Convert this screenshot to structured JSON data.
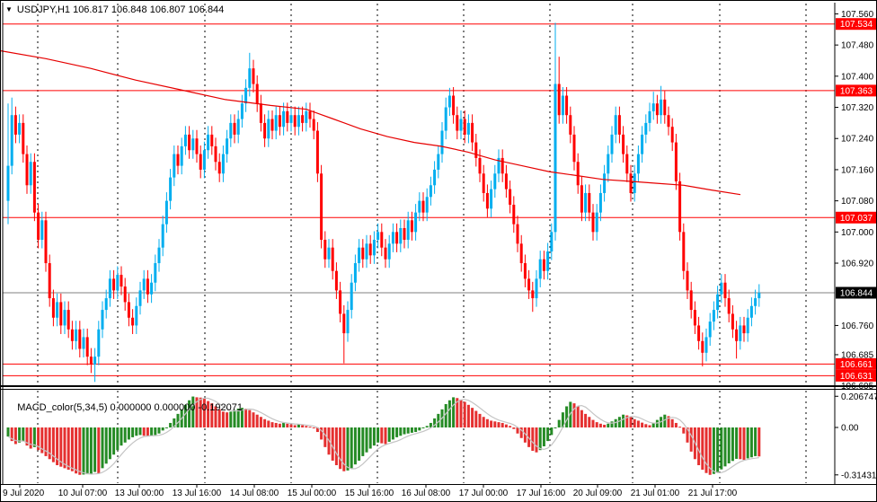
{
  "header": {
    "title": "USDJPY,H1 106.817 106.848 106.807 106.844",
    "symbol": "USDJPY",
    "timeframe": "H1"
  },
  "indicator": {
    "label": "MACD_color(5,34,5) 0.000000 0.000000 -0.192071",
    "name": "MACD_color",
    "params": "5,34,5",
    "current_values": [
      "0.000000",
      "0.000000",
      "-0.192071"
    ]
  },
  "colors": {
    "bull_candle": "#00aeef",
    "bear_candle": "#ff0000",
    "ma_line": "#e60000",
    "level_line": "#ff0000",
    "current_price_line": "#808080",
    "macd_up": "#258b25",
    "macd_down": "#e53030",
    "macd_signal": "#c4c4c4",
    "badge_red": "#ff0000",
    "badge_black": "#000000",
    "badge_text": "#ffffff",
    "grid": "#000000",
    "axis_text": "#000000"
  },
  "chart_data": {
    "type": "candlestick",
    "title": "USDJPY,H1",
    "ohlc_display": {
      "open": "106.817",
      "high": "106.848",
      "low": "106.807",
      "close": "106.844"
    },
    "ylim": [
      106.605,
      107.56
    ],
    "grid": "vertical-dashed",
    "price_axis_ticks": [
      107.56,
      107.48,
      107.4,
      107.32,
      107.24,
      107.16,
      107.08,
      107.0,
      106.92,
      106.76,
      106.685,
      106.605
    ],
    "current_price": 106.844,
    "horizontal_levels": [
      107.534,
      107.363,
      107.037,
      106.661,
      106.631
    ],
    "x_axis_labels": [
      "9 Jul 2020",
      "10 Jul 07:00",
      "13 Jul 00:00",
      "13 Jul 16:00",
      "14 Jul 08:00",
      "15 Jul 00:00",
      "15 Jul 16:00",
      "16 Jul 08:00",
      "17 Jul 00:00",
      "17 Jul 16:00",
      "20 Jul 09:00",
      "21 Jul 01:00",
      "21 Jul 17:00"
    ],
    "candles": {
      "first_open": 107.08,
      "default_wick": 0.022,
      "closes": [
        107.17,
        107.3,
        107.25,
        107.28,
        107.2,
        107.12,
        107.18,
        107.05,
        106.98,
        107.03,
        106.92,
        106.83,
        106.78,
        106.82,
        106.76,
        106.8,
        106.75,
        106.72,
        106.75,
        106.7,
        106.73,
        106.68,
        106.66,
        106.68,
        106.75,
        106.8,
        106.83,
        106.88,
        106.85,
        106.89,
        106.86,
        106.82,
        106.78,
        106.76,
        106.81,
        106.85,
        106.88,
        106.84,
        106.87,
        106.92,
        106.96,
        107.02,
        107.08,
        107.14,
        107.2,
        107.17,
        107.22,
        107.25,
        107.21,
        107.24,
        107.2,
        107.16,
        107.21,
        107.25,
        107.22,
        107.18,
        107.15,
        107.2,
        107.24,
        107.28,
        107.25,
        107.29,
        107.33,
        107.37,
        107.42,
        107.38,
        107.33,
        107.28,
        107.24,
        107.29,
        107.26,
        107.3,
        107.27,
        107.31,
        107.28,
        107.3,
        107.27,
        107.3,
        107.28,
        107.31,
        107.29,
        107.26,
        107.15,
        106.98,
        106.93,
        106.96,
        106.9,
        106.85,
        106.79,
        106.74,
        106.8,
        106.87,
        106.92,
        106.96,
        106.93,
        106.97,
        106.94,
        106.98,
        107.0,
        106.96,
        106.93,
        106.97,
        107.0,
        106.97,
        107.01,
        106.98,
        107.03,
        107.0,
        107.05,
        107.08,
        107.05,
        107.09,
        107.12,
        107.16,
        107.2,
        107.26,
        107.32,
        107.35,
        107.3,
        107.26,
        107.29,
        107.25,
        107.28,
        107.23,
        107.19,
        107.15,
        107.1,
        107.06,
        107.11,
        107.15,
        107.19,
        107.15,
        107.11,
        107.07,
        107.02,
        106.97,
        106.92,
        106.88,
        106.85,
        106.83,
        106.88,
        106.93,
        106.9,
        106.95,
        107.0,
        107.38,
        107.3,
        107.35,
        107.3,
        107.25,
        107.18,
        107.12,
        107.05,
        107.1,
        107.05,
        107.0,
        107.05,
        107.1,
        107.15,
        107.2,
        107.25,
        107.3,
        107.25,
        107.2,
        107.15,
        107.1,
        107.15,
        107.2,
        107.25,
        107.28,
        107.31,
        107.33,
        107.3,
        107.34,
        107.3,
        107.27,
        107.23,
        107.13,
        107.0,
        106.9,
        106.85,
        106.8,
        106.76,
        106.72,
        106.69,
        106.73,
        106.77,
        106.8,
        106.84,
        106.87,
        106.83,
        106.79,
        106.75,
        106.72,
        106.76,
        106.74,
        106.78,
        106.81,
        106.83,
        106.844
      ],
      "wick_overrides": {
        "0": {
          "h": 107.33,
          "l": 107.02
        },
        "1": {
          "h": 107.345
        },
        "23": {
          "l": 106.615
        },
        "64": {
          "h": 107.46
        },
        "89": {
          "l": 106.663
        },
        "116": {
          "h": 107.345
        },
        "117": {
          "h": 107.37
        },
        "139": {
          "l": 106.795
        },
        "145": {
          "h": 107.537
        },
        "146": {
          "h": 107.45
        },
        "171": {
          "h": 107.36
        },
        "173": {
          "h": 107.375
        },
        "184": {
          "l": 106.655
        },
        "193": {
          "l": 106.675
        }
      }
    },
    "ma_line_points": [
      [
        0,
        107.465
      ],
      [
        50,
        107.445
      ],
      [
        100,
        107.42
      ],
      [
        150,
        107.39
      ],
      [
        200,
        107.365
      ],
      [
        250,
        107.34
      ],
      [
        300,
        107.325
      ],
      [
        340,
        107.315
      ],
      [
        370,
        107.29
      ],
      [
        400,
        107.265
      ],
      [
        430,
        107.245
      ],
      [
        460,
        107.23
      ],
      [
        490,
        107.22
      ],
      [
        520,
        107.205
      ],
      [
        550,
        107.185
      ],
      [
        580,
        107.17
      ],
      [
        610,
        107.155
      ],
      [
        640,
        107.145
      ],
      [
        670,
        107.135
      ],
      [
        700,
        107.13
      ],
      [
        730,
        107.125
      ],
      [
        760,
        107.12
      ],
      [
        790,
        107.108
      ],
      [
        823,
        107.096
      ]
    ],
    "macd": {
      "ylim": [
        -0.314311,
        0.206747
      ],
      "axis_ticks": [
        {
          "value": 0.206747,
          "label": "0.206747"
        },
        {
          "value": 0,
          "label": "0.00"
        },
        {
          "value": -0.314311,
          "label": "-0.314311"
        }
      ],
      "signal_period": 5,
      "values": [
        -0.06,
        -0.09,
        -0.11,
        -0.1,
        -0.09,
        -0.12,
        -0.14,
        -0.13,
        -0.15,
        -0.17,
        -0.19,
        -0.21,
        -0.23,
        -0.25,
        -0.26,
        -0.27,
        -0.28,
        -0.29,
        -0.305,
        -0.314,
        -0.312,
        -0.31,
        -0.308,
        -0.295,
        -0.305,
        -0.27,
        -0.24,
        -0.21,
        -0.18,
        -0.15,
        -0.12,
        -0.1,
        -0.08,
        -0.065,
        -0.055,
        -0.05,
        -0.055,
        -0.06,
        -0.055,
        -0.05,
        -0.04,
        -0.02,
        0.0,
        0.03,
        0.06,
        0.09,
        0.12,
        0.15,
        0.18,
        0.205,
        0.2,
        0.198,
        0.19,
        0.175,
        0.16,
        0.14,
        0.12,
        0.105,
        0.1,
        0.105,
        0.115,
        0.125,
        0.13,
        0.125,
        0.115,
        0.1,
        0.085,
        0.07,
        0.055,
        0.045,
        0.035,
        0.03,
        0.025,
        0.03,
        0.025,
        0.02,
        0.015,
        0.02,
        0.015,
        0.01,
        0.005,
        -0.005,
        -0.03,
        -0.08,
        -0.13,
        -0.18,
        -0.22,
        -0.25,
        -0.275,
        -0.29,
        -0.285,
        -0.27,
        -0.245,
        -0.22,
        -0.19,
        -0.165,
        -0.14,
        -0.12,
        -0.1,
        -0.105,
        -0.11,
        -0.095,
        -0.08,
        -0.065,
        -0.055,
        -0.045,
        -0.04,
        -0.035,
        -0.03,
        -0.02,
        -0.005,
        0.01,
        0.03,
        0.06,
        0.09,
        0.12,
        0.155,
        0.18,
        0.2,
        0.195,
        0.185,
        0.17,
        0.15,
        0.13,
        0.11,
        0.09,
        0.07,
        0.055,
        0.045,
        0.04,
        0.035,
        0.03,
        0.02,
        0.01,
        -0.01,
        -0.04,
        -0.07,
        -0.1,
        -0.13,
        -0.155,
        -0.165,
        -0.15,
        -0.125,
        -0.09,
        -0.05,
        0.0,
        0.05,
        0.1,
        0.14,
        0.17,
        0.16,
        0.14,
        0.115,
        0.09,
        0.07,
        0.05,
        0.035,
        0.025,
        0.018,
        0.025,
        0.04,
        0.055,
        0.07,
        0.085,
        0.08,
        0.07,
        0.055,
        0.045,
        0.032,
        0.022,
        0.015,
        0.03,
        0.05,
        0.07,
        0.085,
        0.075,
        0.055,
        0.03,
        0.005,
        -0.04,
        -0.1,
        -0.16,
        -0.21,
        -0.25,
        -0.28,
        -0.302,
        -0.314,
        -0.308,
        -0.295,
        -0.278,
        -0.258,
        -0.238,
        -0.222,
        -0.208,
        -0.21,
        -0.215,
        -0.205,
        -0.198,
        -0.19,
        -0.192071
      ]
    },
    "current_price_badge": "106.844",
    "level_badges": [
      "107.534",
      "107.363",
      "107.037",
      "106.661",
      "106.631"
    ]
  }
}
